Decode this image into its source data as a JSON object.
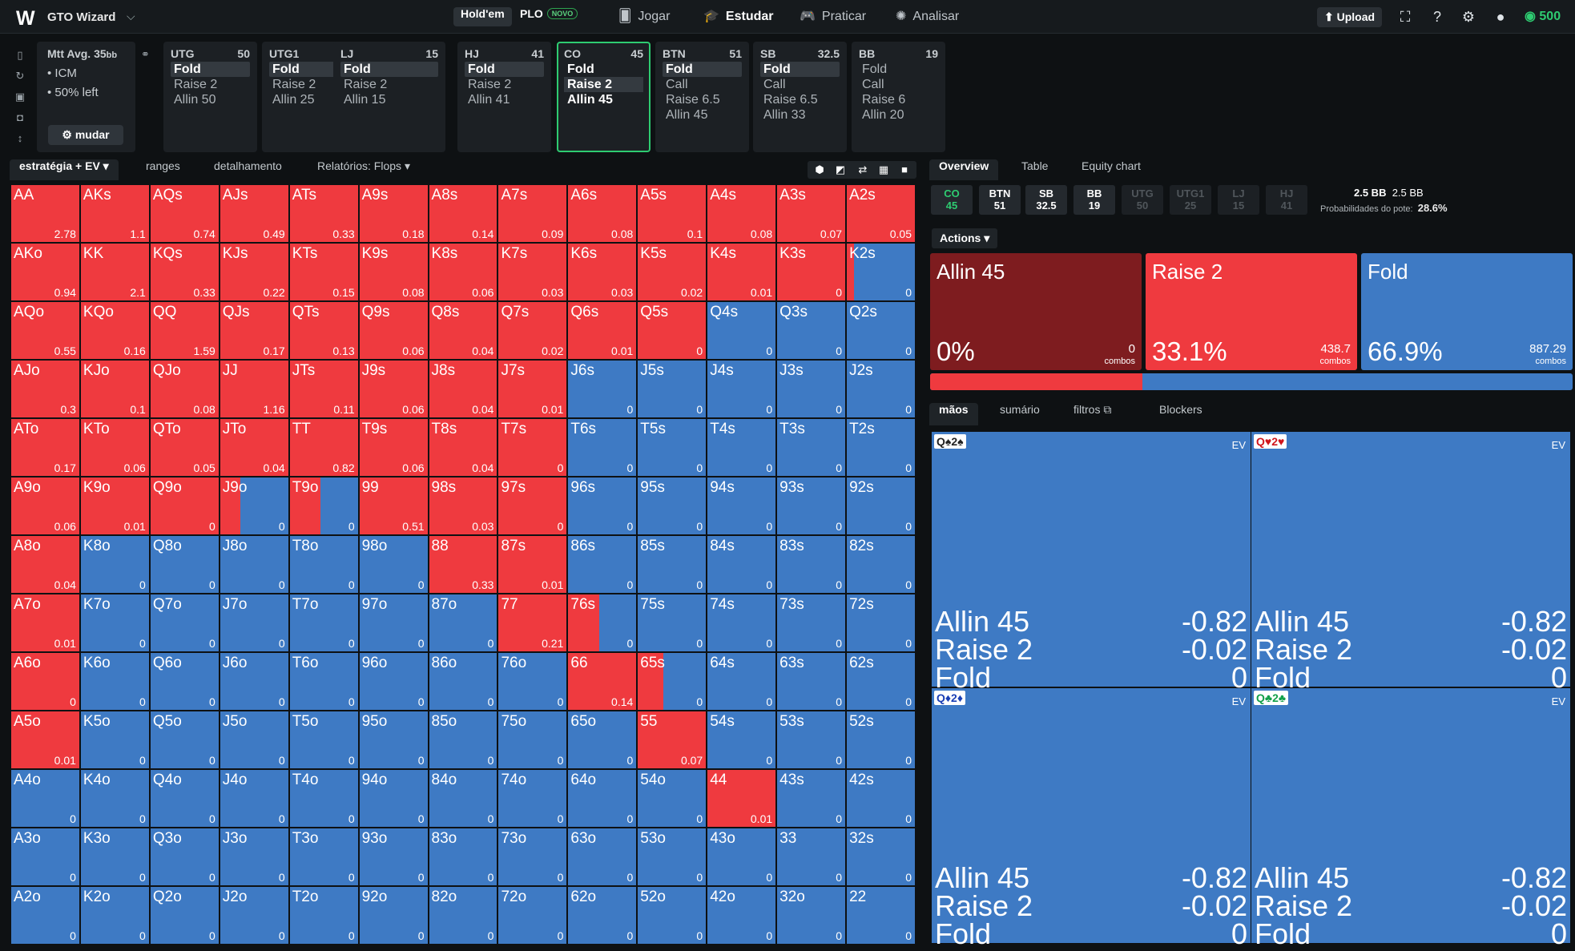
{
  "app": {
    "logo": "W",
    "name": "GTO Wizard"
  },
  "game_tabs": [
    "Hold'em",
    "PLO"
  ],
  "novo": "NOVO",
  "nav": [
    "Jogar",
    "Estudar",
    "Praticar",
    "Analisar"
  ],
  "upload": "Upload",
  "coins": "500",
  "settings": {
    "title": "Mtt",
    "avg": "Avg. 35",
    "bb": "bb",
    "lines": [
      "• ICM",
      "• 50% left"
    ],
    "button": "mudar"
  },
  "positions": [
    {
      "name": "UTG",
      "stack": "50",
      "actions": [
        "Fold",
        "Raise 2",
        "Allin 50"
      ],
      "sel": 0,
      "chosen": -1
    },
    {
      "name": "UTG1",
      "stack": "25",
      "actions": [
        "Fold",
        "Raise 2",
        "Allin 25"
      ],
      "sel": 0,
      "chosen": -1
    },
    {
      "name": "LJ",
      "stack": "15",
      "actions": [
        "Fold",
        "Raise 2",
        "Allin 15"
      ],
      "sel": 0,
      "chosen": -1
    },
    {
      "name": "HJ",
      "stack": "41",
      "actions": [
        "Fold",
        "Raise 2",
        "Allin 41"
      ],
      "sel": 0,
      "chosen": -1
    },
    {
      "name": "CO",
      "stack": "45",
      "actions": [
        "Fold",
        "Raise 2",
        "Allin 45"
      ],
      "sel": 1,
      "chosen": 1,
      "active": true
    },
    {
      "name": "BTN",
      "stack": "51",
      "actions": [
        "Fold",
        "Call",
        "Raise 6.5",
        "Allin 45"
      ],
      "sel": 0,
      "chosen": -1
    },
    {
      "name": "SB",
      "stack": "32.5",
      "actions": [
        "Fold",
        "Call",
        "Raise 6.5",
        "Allin 33"
      ],
      "sel": 0,
      "chosen": -1
    },
    {
      "name": "BB",
      "stack": "19",
      "actions": [
        "Fold",
        "Call",
        "Raise 6",
        "Allin 20"
      ],
      "sel": -1,
      "chosen": -1
    }
  ],
  "grid_tabs": [
    "estratégia + EV",
    "ranges",
    "detalhamento",
    "Relatórios: Flops"
  ],
  "grid": {
    "ranks": [
      "A",
      "K",
      "Q",
      "J",
      "T",
      "9",
      "8",
      "7",
      "6",
      "5",
      "4",
      "3",
      "2"
    ],
    "raise_freq": [
      [
        1,
        1,
        1,
        1,
        1,
        1,
        1,
        1,
        1,
        1,
        1,
        1,
        1
      ],
      [
        1,
        1,
        1,
        1,
        1,
        1,
        1,
        1,
        1,
        1,
        1,
        1,
        0.1
      ],
      [
        1,
        1,
        1,
        1,
        1,
        1,
        1,
        1,
        1,
        1,
        0,
        0,
        0
      ],
      [
        1,
        1,
        1,
        1,
        1,
        1,
        1,
        1,
        0,
        0,
        0,
        0,
        0
      ],
      [
        1,
        1,
        1,
        1,
        1,
        1,
        1,
        1,
        0,
        0,
        0,
        0,
        0
      ],
      [
        1,
        1,
        1,
        0.3,
        0.45,
        1,
        1,
        1,
        0,
        0,
        0,
        0,
        0
      ],
      [
        1,
        0,
        0,
        0,
        0,
        0,
        1,
        1,
        0,
        0,
        0,
        0,
        0
      ],
      [
        1,
        0,
        0,
        0,
        0,
        0,
        0,
        1,
        0.45,
        0,
        0,
        0,
        0
      ],
      [
        1,
        0,
        0,
        0,
        0,
        0,
        0,
        0,
        1,
        0.37,
        0,
        0,
        0
      ],
      [
        1,
        0,
        0,
        0,
        0,
        0,
        0,
        0,
        0,
        1,
        0,
        0,
        0
      ],
      [
        0,
        0,
        0,
        0,
        0,
        0,
        0,
        0,
        0,
        0,
        1,
        0,
        0
      ],
      [
        0,
        0,
        0,
        0,
        0,
        0,
        0,
        0,
        0,
        0,
        0,
        0,
        0
      ],
      [
        0,
        0,
        0,
        0,
        0,
        0,
        0,
        0,
        0,
        0,
        0,
        0,
        0
      ]
    ],
    "ev": [
      [
        "2.78",
        "1.1",
        "0.74",
        "0.49",
        "0.33",
        "0.18",
        "0.14",
        "0.09",
        "0.08",
        "0.1",
        "0.08",
        "0.07",
        "0.05"
      ],
      [
        "0.94",
        "2.1",
        "0.33",
        "0.22",
        "0.15",
        "0.08",
        "0.06",
        "0.03",
        "0.03",
        "0.02",
        "0.01",
        "0",
        "0"
      ],
      [
        "0.55",
        "0.16",
        "1.59",
        "0.17",
        "0.13",
        "0.06",
        "0.04",
        "0.02",
        "0.01",
        "0",
        "0",
        "0",
        "0"
      ],
      [
        "0.3",
        "0.1",
        "0.08",
        "1.16",
        "0.11",
        "0.06",
        "0.04",
        "0.01",
        "0",
        "0",
        "0",
        "0",
        "0"
      ],
      [
        "0.17",
        "0.06",
        "0.05",
        "0.04",
        "0.82",
        "0.06",
        "0.04",
        "0",
        "0",
        "0",
        "0",
        "0",
        "0"
      ],
      [
        "0.06",
        "0.01",
        "0",
        "0",
        "0",
        "0.51",
        "0.03",
        "0",
        "0",
        "0",
        "0",
        "0",
        "0"
      ],
      [
        "0.04",
        "0",
        "0",
        "0",
        "0",
        "0",
        "0.33",
        "0.01",
        "0",
        "0",
        "0",
        "0",
        "0"
      ],
      [
        "0.01",
        "0",
        "0",
        "0",
        "0",
        "0",
        "0",
        "0.21",
        "0",
        "0",
        "0",
        "0",
        "0"
      ],
      [
        "0",
        "0",
        "0",
        "0",
        "0",
        "0",
        "0",
        "0",
        "0.14",
        "0",
        "0",
        "0",
        "0"
      ],
      [
        "0.01",
        "0",
        "0",
        "0",
        "0",
        "0",
        "0",
        "0",
        "0",
        "0.07",
        "0",
        "0",
        "0"
      ],
      [
        "0",
        "0",
        "0",
        "0",
        "0",
        "0",
        "0",
        "0",
        "0",
        "0",
        "0.01",
        "0",
        "0"
      ],
      [
        "0",
        "0",
        "0",
        "0",
        "0",
        "0",
        "0",
        "0",
        "0",
        "0",
        "0",
        "0",
        "0"
      ],
      [
        "0",
        "0",
        "0",
        "0",
        "0",
        "0",
        "0",
        "0",
        "0",
        "0",
        "0",
        "0",
        "0"
      ]
    ]
  },
  "right_tabs": [
    "Overview",
    "Table",
    "Equity chart"
  ],
  "chips": [
    {
      "name": "CO",
      "stack": "45",
      "style": "co"
    },
    {
      "name": "BTN",
      "stack": "51",
      "style": ""
    },
    {
      "name": "SB",
      "stack": "32.5",
      "style": ""
    },
    {
      "name": "BB",
      "stack": "19",
      "style": ""
    },
    {
      "name": "UTG",
      "stack": "50",
      "style": "dim"
    },
    {
      "name": "UTG1",
      "stack": "25",
      "style": "dim"
    },
    {
      "name": "LJ",
      "stack": "15",
      "style": "dim"
    },
    {
      "name": "HJ",
      "stack": "41",
      "style": "dim"
    }
  ],
  "pot": {
    "line1a": "2.5 BB",
    "line1b": "2.5 BB",
    "odds_label": "Probabilidades do pote:",
    "odds_value": "28.6%"
  },
  "actions_label": "Actions",
  "action_boxes": [
    {
      "name": "Allin 45",
      "pct": "0%",
      "combos": "0",
      "combos_label": "combos",
      "color": "#7e1c1f"
    },
    {
      "name": "Raise 2",
      "pct": "33.1%",
      "combos": "438.7",
      "combos_label": "combos",
      "color": "#ef3a3f"
    },
    {
      "name": "Fold",
      "pct": "66.9%",
      "combos": "887.29",
      "combos_label": "combos",
      "color": "#3e7ac4"
    }
  ],
  "freq_bar": {
    "raise": 0.331,
    "fold": 0.669
  },
  "lower_tabs": [
    "mãos",
    "sumário",
    "filtros",
    "Blockers"
  ],
  "ev_label": "EV",
  "combos": [
    {
      "card": "Q♠2♠",
      "color": "#222",
      "rows": [
        [
          "Allin 45",
          "-0.82"
        ],
        [
          "Raise 2",
          "-0.02"
        ],
        [
          "Fold",
          "0"
        ]
      ]
    },
    {
      "card": "Q♥2♥",
      "color": "#d0161d",
      "rows": [
        [
          "Allin 45",
          "-0.82"
        ],
        [
          "Raise 2",
          "-0.02"
        ],
        [
          "Fold",
          "0"
        ]
      ]
    },
    {
      "card": "Q♦2♦",
      "color": "#1a3fb5",
      "rows": [
        [
          "Allin 45",
          "-0.82"
        ],
        [
          "Raise 2",
          "-0.02"
        ],
        [
          "Fold",
          "0"
        ]
      ]
    },
    {
      "card": "Q♣2♣",
      "color": "#13a04a",
      "rows": [
        [
          "Allin 45",
          "-0.82"
        ],
        [
          "Raise 2",
          "-0.02"
        ],
        [
          "Fold",
          "0"
        ]
      ]
    }
  ]
}
